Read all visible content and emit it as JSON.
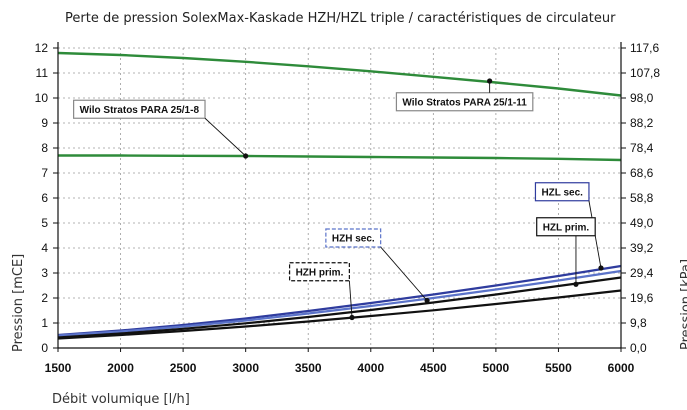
{
  "chart_data": {
    "type": "line",
    "title": "Perte de pression SolexMax-Kaskade HZH/HZL triple / caractéristiques de circulateur",
    "xlabel": "Débit volumique [l/h]",
    "ylabel": "Pression [mCE]",
    "ylabel_right": "Pression [kPa]",
    "xlim": [
      1500,
      6000
    ],
    "ylim": [
      0,
      12
    ],
    "x_ticks": [
      "1500",
      "2000",
      "2500",
      "3000",
      "3500",
      "4000",
      "4500",
      "5000",
      "5500",
      "6000"
    ],
    "y_ticks": [
      "0",
      "1",
      "2",
      "3",
      "4",
      "5",
      "6",
      "7",
      "8",
      "9",
      "10",
      "11",
      "12"
    ],
    "y_ticks_right": [
      "0,0",
      "9,8",
      "19,6",
      "29,4",
      "39,2",
      "49,0",
      "58,8",
      "68,6",
      "78,4",
      "88,2",
      "98,0",
      "107,8",
      "117,6"
    ],
    "grid": true,
    "series": [
      {
        "name": "Wilo Stratos PARA 25/1-11",
        "color": "#2e8b3a",
        "x": [
          1500,
          2000,
          2500,
          3000,
          3500,
          4000,
          4500,
          5000,
          5500,
          6000
        ],
        "y": [
          11.8,
          11.72,
          11.6,
          11.45,
          11.27,
          11.07,
          10.85,
          10.62,
          10.38,
          10.1
        ]
      },
      {
        "name": "Wilo Stratos PARA 25/1-8",
        "color": "#2e8b3a",
        "x": [
          1500,
          2000,
          2500,
          3000,
          3500,
          4000,
          4500,
          5000,
          5500,
          6000
        ],
        "y": [
          7.7,
          7.7,
          7.69,
          7.68,
          7.66,
          7.64,
          7.62,
          7.6,
          7.57,
          7.52
        ]
      },
      {
        "name": "HZL sec.",
        "color": "#2f3c9e",
        "x": [
          1500,
          2000,
          2500,
          3000,
          3500,
          4000,
          4500,
          5000,
          5500,
          6000
        ],
        "y": [
          0.52,
          0.7,
          0.92,
          1.18,
          1.48,
          1.8,
          2.14,
          2.5,
          2.88,
          3.28
        ]
      },
      {
        "name": "HZH sec.",
        "color": "#5b73c9",
        "x": [
          1500,
          2000,
          2500,
          3000,
          3500,
          4000,
          4500,
          5000,
          5500,
          6000
        ],
        "y": [
          0.5,
          0.66,
          0.86,
          1.1,
          1.38,
          1.68,
          2.0,
          2.34,
          2.7,
          3.08
        ]
      },
      {
        "name": "HZL prim.",
        "color": "#111111",
        "x": [
          1500,
          2000,
          2500,
          3000,
          3500,
          4000,
          4500,
          5000,
          5500,
          6000
        ],
        "y": [
          0.42,
          0.58,
          0.77,
          0.99,
          1.24,
          1.52,
          1.82,
          2.14,
          2.48,
          2.82
        ]
      },
      {
        "name": "HZH prim.",
        "color": "#111111",
        "x": [
          1500,
          2000,
          2500,
          3000,
          3500,
          4000,
          4500,
          5000,
          5500,
          6000
        ],
        "y": [
          0.38,
          0.52,
          0.68,
          0.86,
          1.06,
          1.28,
          1.51,
          1.76,
          2.02,
          2.3
        ]
      }
    ],
    "annotations": [
      {
        "text": "Wilo Stratos PARA 25/1-8",
        "series": 1,
        "point_x": 3000,
        "point_y": 7.68,
        "box_x": 2150,
        "box_y": 9.55,
        "border": "solid",
        "border_color": "#888888"
      },
      {
        "text": "Wilo Stratos PARA 25/1-11",
        "series": 0,
        "point_x": 4950,
        "point_y": 10.68,
        "box_x": 4750,
        "box_y": 9.85,
        "border": "solid",
        "border_color": "#888888"
      },
      {
        "text": "HZL sec.",
        "series": 2,
        "point_x": 5840,
        "point_y": 3.2,
        "box_x": 5530,
        "box_y": 6.25,
        "border": "solid",
        "border_color": "#2f3c9e"
      },
      {
        "text": "HZL prim.",
        "series": 4,
        "point_x": 5640,
        "point_y": 2.55,
        "box_x": 5560,
        "box_y": 4.85,
        "border": "solid",
        "border_color": "#111111"
      },
      {
        "text": "HZH sec.",
        "series": 3,
        "point_x": 4450,
        "point_y": 1.9,
        "box_x": 3860,
        "box_y": 4.4,
        "border": "dashed",
        "border_color": "#5b73c9"
      },
      {
        "text": "HZH prim.",
        "series": 5,
        "point_x": 3850,
        "point_y": 1.22,
        "box_x": 3590,
        "box_y": 3.05,
        "border": "dashed",
        "border_color": "#111111"
      }
    ]
  }
}
